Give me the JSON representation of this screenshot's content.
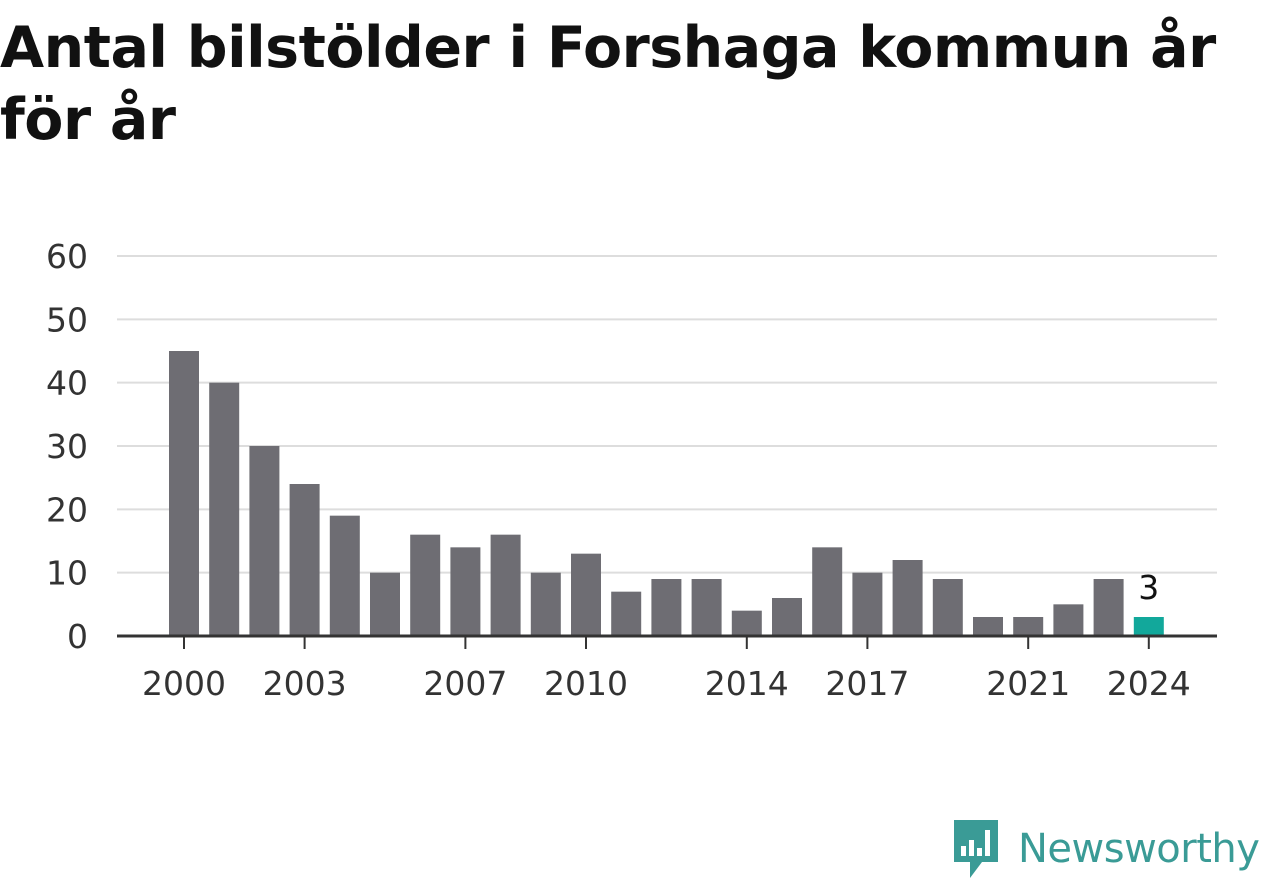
{
  "title": "Antal bilstölder i Forshaga kommun år för år",
  "brand": {
    "name": "Newsworthy",
    "icon": "newsworthy-logo-icon",
    "color": "#3a9b96"
  },
  "chart_data": {
    "type": "bar",
    "title": "Antal bilstölder i Forshaga kommun år för år",
    "xlabel": "",
    "ylabel": "",
    "categories": [
      2000,
      2001,
      2002,
      2003,
      2004,
      2005,
      2006,
      2007,
      2008,
      2009,
      2010,
      2011,
      2012,
      2013,
      2014,
      2015,
      2016,
      2017,
      2018,
      2019,
      2020,
      2021,
      2022,
      2023,
      2024
    ],
    "values": [
      45,
      40,
      30,
      24,
      19,
      10,
      16,
      14,
      16,
      10,
      13,
      7,
      9,
      9,
      4,
      6,
      14,
      10,
      12,
      9,
      3,
      3,
      5,
      9,
      3
    ],
    "x_tick_labels": [
      "2000",
      "2003",
      "2007",
      "2010",
      "2014",
      "2017",
      "2021",
      "2024"
    ],
    "y_ticks": [
      0,
      10,
      20,
      30,
      40,
      50,
      60
    ],
    "ylim": [
      0,
      60
    ],
    "grid": true,
    "highlight": {
      "category": 2024,
      "label": "3"
    },
    "colors": {
      "bar": "#6e6d73",
      "highlight": "#12a89b",
      "grid": "#dddddd",
      "axis": "#333333"
    }
  }
}
